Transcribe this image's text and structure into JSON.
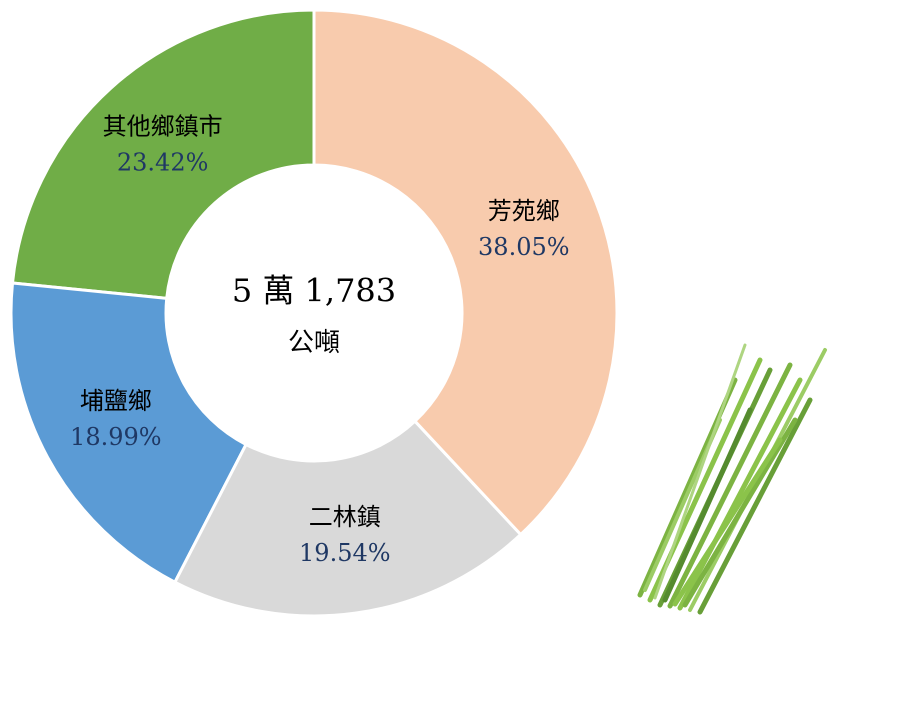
{
  "chart_data": {
    "type": "donut",
    "center_text": "5 萬 1,783",
    "center_unit": "公噸",
    "categories": [
      "芳苑鄉",
      "二林鎮",
      "埔鹽鄉",
      "其他鄉鎮市"
    ],
    "values": [
      38.05,
      19.54,
      18.99,
      23.42
    ],
    "value_labels": [
      "38.05%",
      "19.54%",
      "18.99%",
      "23.42%"
    ],
    "colors": [
      "#f8cbad",
      "#d9d9d9",
      "#5b9bd5",
      "#70ad47"
    ]
  }
}
